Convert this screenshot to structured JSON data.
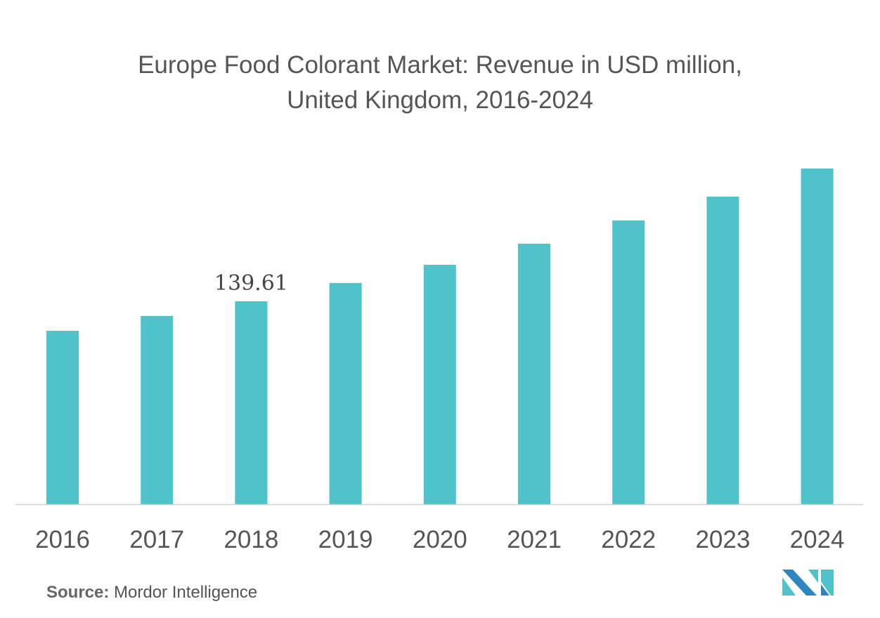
{
  "chart_data": {
    "type": "bar",
    "title_line1": "Europe Food Colorant Market: Revenue in USD million,",
    "title_line2": "United Kingdom, 2016-2024",
    "categories": [
      "2016",
      "2017",
      "2018",
      "2019",
      "2020",
      "2021",
      "2022",
      "2023",
      "2024"
    ],
    "values": [
      119.3,
      129.5,
      139.61,
      152.2,
      164.7,
      179.2,
      195.2,
      211.6,
      230.9
    ],
    "data_labels": {
      "2018": "139.61"
    },
    "xlabel": "",
    "ylabel": "",
    "ylim": [
      0,
      240
    ],
    "grid": false,
    "legend": "none",
    "bar_color": "#4fc3c9",
    "axis_color": "#d0d0d0"
  },
  "source": {
    "label": "Source:",
    "text": "Mordor Intelligence"
  },
  "logo": {
    "colors": [
      "#2e86c1",
      "#4fc3c9"
    ]
  }
}
